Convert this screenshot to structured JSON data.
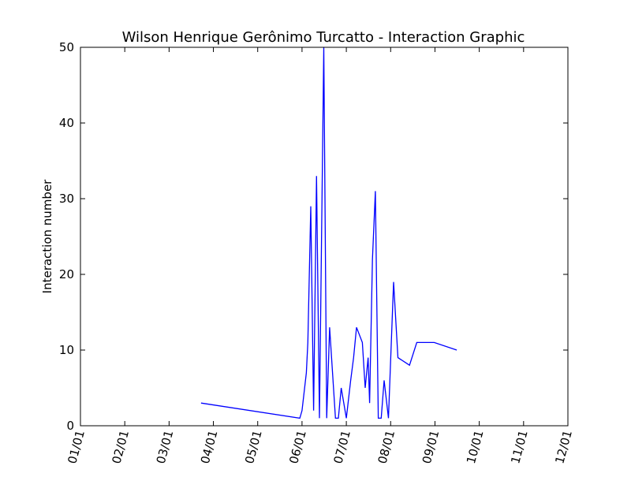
{
  "chart_data": {
    "type": "line",
    "title": "Wilson Henrique Gerônimo Turcatto - Interaction Graphic",
    "xlabel": "",
    "ylabel": "Interaction number",
    "x_tick_labels": [
      "01/01",
      "02/01",
      "03/01",
      "04/01",
      "05/01",
      "06/01",
      "07/01",
      "08/01",
      "09/01",
      "10/01",
      "11/01",
      "12/01"
    ],
    "y_ticks": [
      0,
      10,
      20,
      30,
      40,
      50
    ],
    "ylim": [
      0,
      50
    ],
    "grid": false,
    "series": [
      {
        "color": "#0000ff",
        "x": [
          "03/23",
          "05/30",
          "06/01",
          "06/04",
          "06/05",
          "06/07",
          "06/09",
          "06/11",
          "06/13",
          "06/16",
          "06/18",
          "06/20",
          "06/24",
          "06/26",
          "06/28",
          "07/01",
          "07/04",
          "07/06",
          "07/08",
          "07/12",
          "07/14",
          "07/16",
          "07/17",
          "07/19",
          "07/21",
          "07/23",
          "07/25",
          "07/27",
          "07/30",
          "08/03",
          "08/06",
          "08/14",
          "08/19",
          "08/31",
          "09/16"
        ],
        "values": [
          3,
          1,
          2,
          7,
          11,
          29,
          2,
          33,
          1,
          50,
          1,
          13,
          1,
          1,
          5,
          1,
          6,
          9,
          13,
          11,
          5,
          9,
          3,
          22,
          31,
          1,
          1,
          6,
          1,
          19,
          9,
          8,
          11,
          11,
          10
        ]
      }
    ]
  }
}
